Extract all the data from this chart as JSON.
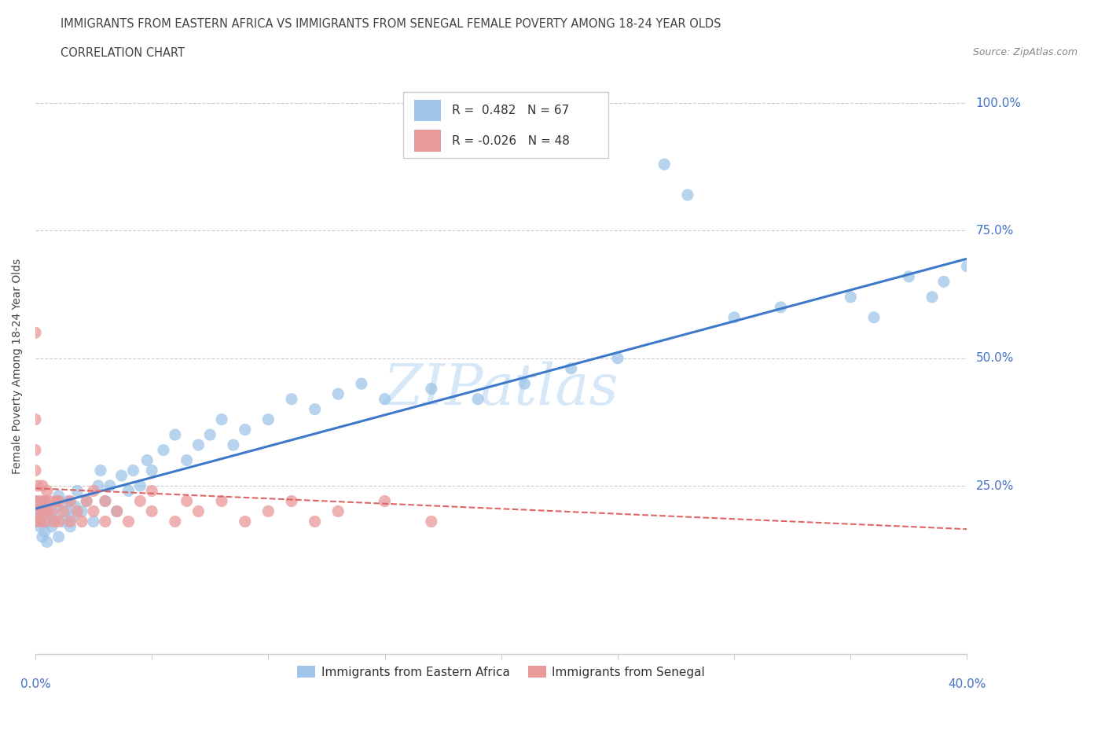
{
  "title": "IMMIGRANTS FROM EASTERN AFRICA VS IMMIGRANTS FROM SENEGAL FEMALE POVERTY AMONG 18-24 YEAR OLDS",
  "subtitle": "CORRELATION CHART",
  "source": "Source: ZipAtlas.com",
  "ylabel": "Female Poverty Among 18-24 Year Olds",
  "xmin": 0.0,
  "xmax": 0.4,
  "ymin": -0.08,
  "ymax": 1.05,
  "R_eastern": 0.482,
  "N_eastern": 67,
  "R_senegal": -0.026,
  "N_senegal": 48,
  "color_eastern": "#9fc5e8",
  "color_senegal": "#ea9999",
  "color_line_eastern": "#3d78c9",
  "color_line_senegal": "#e06666",
  "watermark_color": "#d6e8f7",
  "legend_border": "#cccccc",
  "grid_color": "#cccccc",
  "axis_color": "#cccccc",
  "title_color": "#444444",
  "ylabel_color": "#444444",
  "axis_label_color": "#4472c4",
  "line_ea_x0": 0.0,
  "line_ea_y0": 0.205,
  "line_ea_x1": 0.4,
  "line_ea_y1": 0.695,
  "line_sen_x0": 0.0,
  "line_sen_y0": 0.245,
  "line_sen_x1": 0.4,
  "line_sen_y1": 0.165,
  "ea_x": [
    0.0,
    0.0,
    0.001,
    0.002,
    0.002,
    0.003,
    0.003,
    0.004,
    0.004,
    0.005,
    0.005,
    0.006,
    0.007,
    0.008,
    0.009,
    0.01,
    0.01,
    0.012,
    0.013,
    0.014,
    0.015,
    0.016,
    0.017,
    0.018,
    0.02,
    0.022,
    0.025,
    0.027,
    0.028,
    0.03,
    0.032,
    0.035,
    0.037,
    0.04,
    0.042,
    0.045,
    0.048,
    0.05,
    0.055,
    0.06,
    0.065,
    0.07,
    0.075,
    0.08,
    0.085,
    0.09,
    0.1,
    0.11,
    0.12,
    0.13,
    0.14,
    0.15,
    0.17,
    0.19,
    0.21,
    0.23,
    0.25,
    0.27,
    0.28,
    0.3,
    0.32,
    0.35,
    0.36,
    0.375,
    0.385,
    0.39,
    0.4
  ],
  "ea_y": [
    0.22,
    0.18,
    0.2,
    0.17,
    0.21,
    0.15,
    0.19,
    0.16,
    0.22,
    0.14,
    0.2,
    0.18,
    0.17,
    0.19,
    0.21,
    0.15,
    0.23,
    0.18,
    0.2,
    0.22,
    0.17,
    0.19,
    0.21,
    0.24,
    0.2,
    0.22,
    0.18,
    0.25,
    0.28,
    0.22,
    0.25,
    0.2,
    0.27,
    0.24,
    0.28,
    0.25,
    0.3,
    0.28,
    0.32,
    0.35,
    0.3,
    0.33,
    0.35,
    0.38,
    0.33,
    0.36,
    0.38,
    0.42,
    0.4,
    0.43,
    0.45,
    0.42,
    0.44,
    0.42,
    0.45,
    0.48,
    0.5,
    0.88,
    0.82,
    0.58,
    0.6,
    0.62,
    0.58,
    0.66,
    0.62,
    0.65,
    0.68
  ],
  "sen_x": [
    0.0,
    0.0,
    0.0,
    0.0,
    0.0,
    0.0,
    0.001,
    0.001,
    0.002,
    0.002,
    0.003,
    0.003,
    0.004,
    0.004,
    0.005,
    0.005,
    0.006,
    0.007,
    0.008,
    0.009,
    0.01,
    0.01,
    0.012,
    0.015,
    0.015,
    0.018,
    0.02,
    0.022,
    0.025,
    0.025,
    0.03,
    0.03,
    0.035,
    0.04,
    0.045,
    0.05,
    0.05,
    0.06,
    0.065,
    0.07,
    0.08,
    0.09,
    0.1,
    0.11,
    0.12,
    0.13,
    0.15,
    0.17
  ],
  "sen_y": [
    0.18,
    0.22,
    0.28,
    0.32,
    0.38,
    0.55,
    0.2,
    0.25,
    0.18,
    0.22,
    0.2,
    0.25,
    0.18,
    0.22,
    0.2,
    0.24,
    0.22,
    0.2,
    0.18,
    0.22,
    0.18,
    0.22,
    0.2,
    0.18,
    0.22,
    0.2,
    0.18,
    0.22,
    0.2,
    0.24,
    0.18,
    0.22,
    0.2,
    0.18,
    0.22,
    0.2,
    0.24,
    0.18,
    0.22,
    0.2,
    0.22,
    0.18,
    0.2,
    0.22,
    0.18,
    0.2,
    0.22,
    0.18
  ]
}
